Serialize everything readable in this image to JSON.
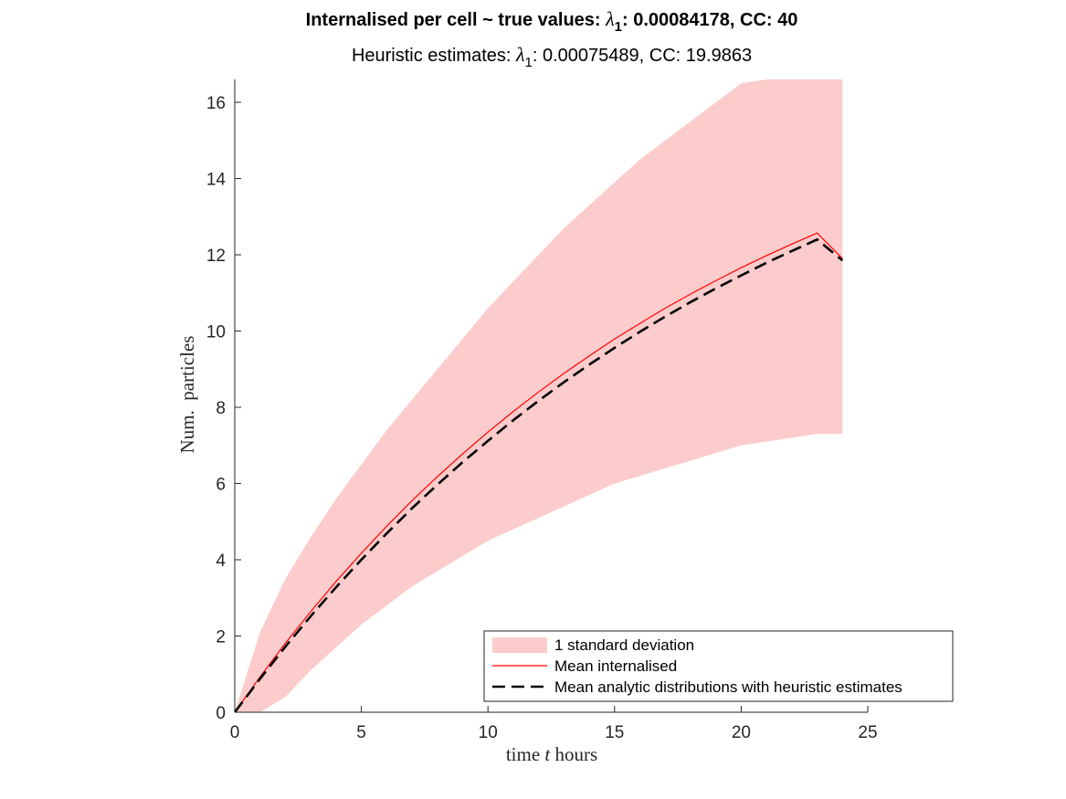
{
  "chart_data": {
    "type": "area",
    "title": {
      "prefix": "Internalised per cell ~ true values: ",
      "lambda_symbol": "λ",
      "lambda_sub": "1",
      "lambda_value": ": 0.00084178, CC: 40"
    },
    "subtitle": {
      "prefix": "Heuristic estimates: ",
      "lambda_symbol": "λ",
      "lambda_sub": "1",
      "lambda_value": ": 0.00075489, CC: 19.9863"
    },
    "xlabel": {
      "pre": "time ",
      "var": "t",
      "post": " hours"
    },
    "ylabel": "Num.  particles",
    "xlim": [
      0,
      25
    ],
    "ylim": [
      0,
      16.6
    ],
    "xticks": [
      "0",
      "5",
      "10",
      "15",
      "20",
      "25"
    ],
    "yticks": [
      "0",
      "2",
      "4",
      "6",
      "8",
      "10",
      "12",
      "14",
      "16"
    ],
    "grid": false,
    "legend_position": "bottom-right",
    "x": [
      0,
      1,
      2,
      3,
      4,
      5,
      6,
      7,
      8,
      9,
      10,
      11,
      12,
      13,
      14,
      15,
      16,
      17,
      18,
      19,
      20,
      21,
      22,
      23,
      24
    ],
    "series": [
      {
        "name": "1 standard deviation",
        "style": "band",
        "color": "#fccccc",
        "upper": [
          0,
          2.1,
          3.5,
          4.6,
          5.6,
          6.5,
          7.4,
          8.2,
          9.0,
          9.8,
          10.6,
          11.3,
          12.0,
          12.7,
          13.3,
          13.9,
          14.5,
          15.0,
          15.5,
          16.0,
          16.5,
          16.9,
          17.3,
          17.7,
          16.6
        ],
        "lower": [
          0,
          -0.5,
          0.4,
          1.1,
          1.7,
          2.3,
          2.8,
          3.3,
          3.7,
          4.1,
          4.5,
          4.8,
          5.1,
          5.4,
          5.7,
          6.0,
          6.2,
          6.4,
          6.6,
          6.8,
          7.0,
          7.1,
          7.2,
          7.3,
          7.3
        ]
      },
      {
        "name": "Mean internalised",
        "style": "line",
        "color": "#ff0000",
        "values": [
          0,
          0.93,
          1.81,
          2.64,
          3.43,
          4.17,
          4.88,
          5.55,
          6.18,
          6.78,
          7.35,
          7.89,
          8.4,
          8.89,
          9.35,
          9.79,
          10.2,
          10.6,
          10.97,
          11.32,
          11.66,
          11.98,
          12.28,
          12.57,
          11.9
        ]
      },
      {
        "name": "Mean analytic distributions with heuristic estimates",
        "style": "dashed",
        "color": "#000000",
        "values": [
          0,
          0.88,
          1.72,
          2.52,
          3.28,
          4.0,
          4.69,
          5.35,
          5.97,
          6.56,
          7.12,
          7.66,
          8.17,
          8.66,
          9.12,
          9.56,
          9.98,
          10.38,
          10.76,
          11.12,
          11.46,
          11.79,
          12.1,
          12.4,
          11.85
        ]
      }
    ]
  }
}
